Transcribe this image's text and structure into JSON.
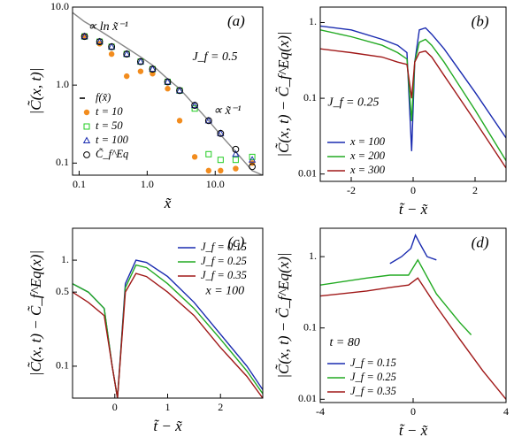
{
  "chart_data": [
    {
      "type": "line",
      "panel": "(a)",
      "xscale": "log",
      "yscale": "log",
      "xlabel": "x̃",
      "ylabel": "|C̃(x, t)|",
      "xlim": [
        0.08,
        50
      ],
      "ylim": [
        0.07,
        10
      ],
      "xticks": [
        {
          "value": 0.1,
          "label": "0.1"
        },
        {
          "value": 1,
          "label": "1.0"
        },
        {
          "value": 10,
          "label": "10.0"
        }
      ],
      "yticks": [
        {
          "value": 0.1,
          "label": "0.1"
        },
        {
          "value": 1,
          "label": "1.0"
        },
        {
          "value": 10,
          "label": "10.0"
        }
      ],
      "annotations": [
        "∝ ln x̃⁻¹",
        "∝ x̃⁻¹",
        "J_f = 0.5"
      ],
      "legend": "center left",
      "series": [
        {
          "name": "f(x̃)",
          "color": "#888888",
          "marker": null,
          "x": [
            0.08,
            0.12,
            0.2,
            0.3,
            0.5,
            0.8,
            1.2,
            2,
            3,
            5,
            8,
            12,
            20,
            35,
            50
          ],
          "values": [
            8.5,
            6.5,
            5,
            4,
            3,
            2.3,
            1.8,
            1.2,
            0.9,
            0.55,
            0.35,
            0.23,
            0.14,
            0.08,
            0.07
          ]
        },
        {
          "name": "t = 10",
          "color": "#f28c1e",
          "marker": "o",
          "x": [
            0.12,
            0.2,
            0.3,
            0.5,
            0.8,
            1.2,
            2,
            3,
            5,
            8,
            12,
            20,
            35
          ],
          "values": [
            4.2,
            3.4,
            2.5,
            1.3,
            1.5,
            1.4,
            0.9,
            0.35,
            0.12,
            0.08,
            0.08,
            0.085,
            0.1
          ]
        },
        {
          "name": "t = 50",
          "color": "#22cc22",
          "marker": "s",
          "x": [
            0.12,
            0.2,
            0.3,
            0.5,
            0.8,
            1.2,
            2,
            3,
            5,
            8,
            12,
            20,
            35
          ],
          "values": [
            4.2,
            3.6,
            3.1,
            2.5,
            2,
            1.6,
            1.1,
            0.85,
            0.5,
            0.13,
            0.11,
            0.11,
            0.12
          ]
        },
        {
          "name": "t = 100",
          "color": "#1a2bb0",
          "marker": "^",
          "x": [
            0.12,
            0.2,
            0.3,
            0.5,
            0.8,
            1.2,
            2,
            3,
            5,
            8,
            12,
            20,
            35
          ],
          "values": [
            4.2,
            3.6,
            3.1,
            2.5,
            2,
            1.6,
            1.1,
            0.85,
            0.55,
            0.35,
            0.24,
            0.13,
            0.11
          ]
        },
        {
          "name": "C̃_f^Eq",
          "color": "#000000",
          "marker": "o-open",
          "x": [
            0.12,
            0.2,
            0.3,
            0.5,
            0.8,
            1.2,
            2,
            3,
            5,
            8,
            12,
            20,
            35
          ],
          "values": [
            4.2,
            3.6,
            3.1,
            2.5,
            2,
            1.6,
            1.1,
            0.85,
            0.55,
            0.35,
            0.24,
            0.15,
            0.09
          ]
        }
      ]
    },
    {
      "type": "line",
      "panel": "(b)",
      "xscale": "linear",
      "yscale": "log",
      "xlabel": "t̃ − x̃",
      "ylabel": "|C̃(x, t) − C̃_f^Eq(x)|",
      "xlim": [
        -3,
        3
      ],
      "ylim": [
        0.008,
        1.6
      ],
      "xticks": [
        -2,
        0,
        2
      ],
      "yticks": [
        0.01,
        0.1,
        {
          "value": 1,
          "label": "1."
        }
      ],
      "annotations": [
        "J_f = 0.25"
      ],
      "legend": "lower left",
      "series": [
        {
          "name": "x = 100",
          "color": "#1a2bb0",
          "marker": null,
          "x": [
            -3,
            -2,
            -1,
            -0.5,
            -0.2,
            -0.05,
            0.05,
            0.2,
            0.4,
            0.6,
            1,
            2,
            3
          ],
          "values": [
            0.9,
            0.8,
            0.6,
            0.5,
            0.4,
            0.02,
            0.3,
            0.8,
            0.85,
            0.7,
            0.45,
            0.12,
            0.03
          ]
        },
        {
          "name": "x = 200",
          "color": "#22aa22",
          "marker": null,
          "x": [
            -3,
            -2,
            -1,
            -0.5,
            -0.2,
            -0.05,
            0.05,
            0.2,
            0.4,
            0.6,
            1,
            2,
            3
          ],
          "values": [
            0.8,
            0.65,
            0.5,
            0.4,
            0.33,
            0.05,
            0.3,
            0.55,
            0.6,
            0.5,
            0.3,
            0.07,
            0.015
          ]
        },
        {
          "name": "x = 300",
          "color": "#a01818",
          "marker": null,
          "x": [
            -3,
            -2,
            -1,
            -0.5,
            -0.2,
            -0.05,
            0.05,
            0.2,
            0.4,
            0.6,
            1,
            2,
            3
          ],
          "values": [
            0.45,
            0.4,
            0.35,
            0.3,
            0.28,
            0.1,
            0.3,
            0.4,
            0.42,
            0.35,
            0.2,
            0.05,
            0.012
          ]
        }
      ]
    },
    {
      "type": "line",
      "panel": "(c)",
      "xscale": "linear",
      "yscale": "log",
      "xlabel": "t̃ − x̃",
      "ylabel": "|C̃(x, t) − C̃_f^Eq(x)|",
      "xlim": [
        -0.8,
        2.8
      ],
      "ylim": [
        0.05,
        2
      ],
      "xticks": [
        0,
        1,
        2
      ],
      "yticks": [
        0.1,
        0.5,
        {
          "value": 1,
          "label": "1."
        }
      ],
      "annotations": [
        "x = 100"
      ],
      "legend": "upper right",
      "series": [
        {
          "name": "J_f = 0.15",
          "color": "#1a2bb0",
          "marker": null,
          "x": [
            -0.8,
            -0.5,
            -0.2,
            -0.05,
            0.05,
            0.2,
            0.4,
            0.6,
            1,
            1.5,
            2,
            2.5,
            2.8
          ],
          "values": [
            0.6,
            0.5,
            0.35,
            0.1,
            0.05,
            0.6,
            1,
            0.95,
            0.7,
            0.4,
            0.2,
            0.1,
            0.06
          ]
        },
        {
          "name": "J_f = 0.25",
          "color": "#22aa22",
          "marker": null,
          "x": [
            -0.8,
            -0.5,
            -0.2,
            -0.05,
            0.05,
            0.2,
            0.4,
            0.6,
            1,
            1.5,
            2,
            2.5,
            2.8
          ],
          "values": [
            0.6,
            0.5,
            0.35,
            0.1,
            0.05,
            0.55,
            0.9,
            0.85,
            0.6,
            0.35,
            0.18,
            0.09,
            0.055
          ]
        },
        {
          "name": "J_f = 0.35",
          "color": "#a01818",
          "marker": null,
          "x": [
            -0.8,
            -0.5,
            -0.2,
            -0.05,
            0.05,
            0.2,
            0.4,
            0.6,
            1,
            1.5,
            2,
            2.5,
            2.8
          ],
          "values": [
            0.5,
            0.4,
            0.3,
            0.1,
            0.05,
            0.5,
            0.75,
            0.7,
            0.5,
            0.3,
            0.15,
            0.08,
            0.05
          ]
        }
      ]
    },
    {
      "type": "line",
      "panel": "(d)",
      "xscale": "linear",
      "yscale": "log",
      "xlabel": "t̃ − x̃",
      "ylabel": "|C̃(x, t) − C̃_f^Eq(x)|",
      "xlim": [
        -4,
        4
      ],
      "ylim": [
        0.009,
        2.5
      ],
      "xticks": [
        -4,
        0,
        4
      ],
      "yticks": [
        0.01,
        0.1,
        {
          "value": 1,
          "label": "1."
        }
      ],
      "annotations": [
        "t = 80"
      ],
      "legend": "lower left",
      "series": [
        {
          "name": "J_f = 0.15",
          "color": "#1a2bb0",
          "marker": null,
          "x": [
            -1,
            -0.5,
            -0.1,
            0.1,
            0.3,
            0.6,
            1
          ],
          "values": [
            0.8,
            1,
            1.3,
            2,
            1.5,
            1,
            0.9
          ]
        },
        {
          "name": "J_f = 0.25",
          "color": "#22aa22",
          "marker": null,
          "x": [
            -4,
            -2,
            -1,
            -0.2,
            0.2,
            1,
            2,
            2.5
          ],
          "values": [
            0.4,
            0.5,
            0.55,
            0.55,
            0.9,
            0.3,
            0.12,
            0.08
          ]
        },
        {
          "name": "J_f = 0.35",
          "color": "#a01818",
          "marker": null,
          "x": [
            -4,
            -2,
            -1,
            -0.2,
            0.2,
            1,
            2,
            3,
            4
          ],
          "values": [
            0.28,
            0.33,
            0.37,
            0.4,
            0.5,
            0.2,
            0.07,
            0.025,
            0.01
          ]
        }
      ]
    }
  ]
}
